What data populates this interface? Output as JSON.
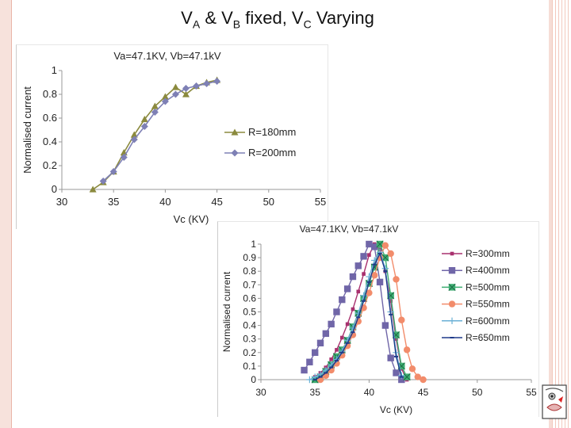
{
  "slide": {
    "title_main_a": "V",
    "title_sub_a": "A",
    "title_main_b": " & V",
    "title_sub_b": "B",
    "title_main_c": " fixed, V",
    "title_sub_c": "C",
    "title_main_d": " Varying"
  },
  "chart_data": [
    {
      "type": "line",
      "title": "Va=47.1KV, Vb=47.1kV",
      "xlabel": "Vc (KV)",
      "ylabel": "Normalised current",
      "xlim": [
        30,
        55
      ],
      "ylim": [
        0,
        1
      ],
      "xticks": [
        30,
        35,
        40,
        45,
        50,
        55
      ],
      "yticks": [
        0,
        0.2,
        0.4,
        0.6,
        0.8,
        1
      ],
      "xtick_labels": [
        "30",
        "35",
        "40",
        "45",
        "50",
        "55"
      ],
      "ytick_labels": [
        "0",
        "0.2",
        "0.4",
        "0.6",
        "0.8",
        "1"
      ],
      "grid": false,
      "legend_position": "right",
      "series": [
        {
          "name": "R=180mm",
          "color": "#8b8a3e",
          "marker": "triangle",
          "x": [
            33,
            34,
            35,
            36,
            37,
            38,
            39,
            40,
            41,
            42,
            43,
            44,
            45
          ],
          "y": [
            0.0,
            0.06,
            0.15,
            0.31,
            0.46,
            0.59,
            0.7,
            0.78,
            0.86,
            0.8,
            0.87,
            0.9,
            0.92
          ]
        },
        {
          "name": "R=200mm",
          "color": "#7e80b5",
          "marker": "diamond",
          "x": [
            34,
            35,
            36,
            37,
            38,
            39,
            40,
            41,
            42,
            43,
            44,
            45
          ],
          "y": [
            0.07,
            0.15,
            0.27,
            0.42,
            0.53,
            0.65,
            0.74,
            0.8,
            0.85,
            0.87,
            0.89,
            0.91
          ]
        }
      ]
    },
    {
      "type": "line",
      "title": "Va=47.1KV, Vb=47.1kV",
      "xlabel": "Vc (KV)",
      "ylabel": "Normalised current",
      "xlim": [
        30,
        55
      ],
      "ylim": [
        0,
        1
      ],
      "xticks": [
        30,
        35,
        40,
        45,
        50,
        55
      ],
      "yticks": [
        0,
        0.1,
        0.2,
        0.3,
        0.4,
        0.5,
        0.6,
        0.7,
        0.8,
        0.9,
        1
      ],
      "xtick_labels": [
        "30",
        "35",
        "40",
        "45",
        "50",
        "55"
      ],
      "ytick_labels": [
        "0",
        "0.1",
        "0.2",
        "0.3",
        "0.4",
        "0.5",
        "0.6",
        "0.7",
        "0.8",
        "0.9",
        "1"
      ],
      "grid": false,
      "legend_position": "right",
      "series": [
        {
          "name": "R=300mm",
          "color": "#a8306e",
          "marker": "small-square",
          "x": [
            35,
            35.5,
            36,
            36.5,
            37,
            37.5,
            38,
            38.5,
            39,
            39.5,
            40,
            40.5,
            41,
            41.5,
            42,
            42.5,
            43,
            43.5
          ],
          "y": [
            0.02,
            0.05,
            0.09,
            0.15,
            0.22,
            0.31,
            0.41,
            0.52,
            0.65,
            0.78,
            0.92,
            1.0,
            0.96,
            0.8,
            0.58,
            0.3,
            0.08,
            0.0
          ]
        },
        {
          "name": "R=400mm",
          "color": "#7066a8",
          "marker": "square",
          "x": [
            34,
            34.5,
            35,
            35.5,
            36,
            36.5,
            37,
            37.5,
            38,
            38.5,
            39,
            39.5,
            40,
            40.5,
            41,
            41.5,
            42,
            42.5,
            43
          ],
          "y": [
            0.07,
            0.13,
            0.2,
            0.27,
            0.34,
            0.41,
            0.5,
            0.59,
            0.67,
            0.76,
            0.84,
            0.91,
            1.0,
            0.98,
            0.72,
            0.4,
            0.16,
            0.05,
            0.0
          ]
        },
        {
          "name": "R=500mm",
          "color": "#3fae73",
          "marker": "box-x",
          "x": [
            35,
            35.5,
            36,
            36.5,
            37,
            37.5,
            38,
            38.5,
            39,
            39.5,
            40,
            40.5,
            41,
            41.5,
            42,
            42.5,
            43,
            43.5
          ],
          "y": [
            0.0,
            0.02,
            0.06,
            0.11,
            0.17,
            0.22,
            0.29,
            0.39,
            0.49,
            0.6,
            0.71,
            0.83,
            1.0,
            0.9,
            0.62,
            0.33,
            0.1,
            0.02
          ]
        },
        {
          "name": "R=550mm",
          "color": "#f28c6b",
          "marker": "circle",
          "x": [
            35.5,
            36,
            36.5,
            37,
            37.5,
            38,
            38.5,
            39,
            39.5,
            40,
            40.5,
            41,
            41.5,
            42,
            42.5,
            43,
            43.5,
            44,
            44.5,
            45
          ],
          "y": [
            0.0,
            0.03,
            0.07,
            0.12,
            0.18,
            0.25,
            0.33,
            0.43,
            0.53,
            0.64,
            0.77,
            0.9,
            0.99,
            0.93,
            0.74,
            0.44,
            0.22,
            0.08,
            0.02,
            0.0
          ]
        },
        {
          "name": "R=600mm",
          "color": "#6ab0d6",
          "marker": "plus",
          "x": [
            34.5,
            35,
            35.5,
            36,
            36.5,
            37,
            37.5,
            38,
            38.5,
            39,
            39.5,
            40,
            40.5,
            41,
            41.5,
            42,
            42.5,
            43
          ],
          "y": [
            0.0,
            0.02,
            0.04,
            0.07,
            0.11,
            0.15,
            0.21,
            0.29,
            0.38,
            0.49,
            0.62,
            0.76,
            0.88,
            0.94,
            0.82,
            0.5,
            0.2,
            0.03
          ]
        },
        {
          "name": "R=650mm",
          "color": "#1f3a8a",
          "marker": "dash",
          "x": [
            35,
            35.5,
            36,
            36.5,
            37,
            37.5,
            38,
            38.5,
            39,
            39.5,
            40,
            40.5,
            41,
            41.5,
            42,
            42.5,
            43
          ],
          "y": [
            0.0,
            0.02,
            0.05,
            0.09,
            0.14,
            0.2,
            0.27,
            0.35,
            0.46,
            0.58,
            0.72,
            0.85,
            0.93,
            0.8,
            0.48,
            0.17,
            0.02
          ]
        }
      ]
    }
  ]
}
